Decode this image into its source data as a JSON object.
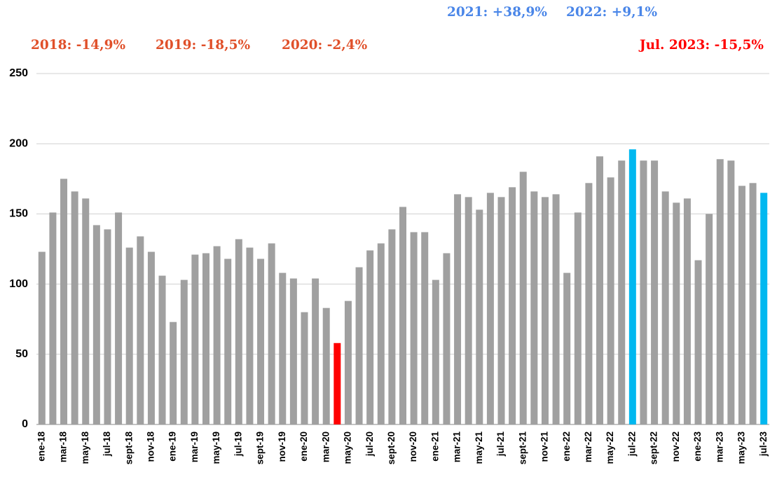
{
  "chart_data": {
    "type": "bar",
    "categories": [
      "ene-18",
      null,
      "mar-18",
      null,
      "may-18",
      null,
      "jul-18",
      null,
      "sept-18",
      null,
      "nov-18",
      null,
      "ene-19",
      null,
      "mar-19",
      null,
      "may-19",
      null,
      "jul-19",
      null,
      "sept-19",
      null,
      "nov-19",
      null,
      "ene-20",
      null,
      "mar-20",
      null,
      "may-20",
      null,
      "jul-20",
      null,
      "sept-20",
      null,
      "nov-20",
      null,
      "ene-21",
      null,
      "mar-21",
      null,
      "may-21",
      null,
      "jul-21",
      null,
      "sept-21",
      null,
      "nov-21",
      null,
      "ene-22",
      null,
      "mar-22",
      null,
      "may-22",
      null,
      "jul-22",
      null,
      "sept-22",
      null,
      "nov-22",
      null,
      "ene-23",
      null,
      "mar-23",
      null,
      "may-23",
      null,
      "jul-23"
    ],
    "values": [
      123,
      151,
      175,
      166,
      161,
      142,
      139,
      151,
      126,
      134,
      123,
      106,
      73,
      103,
      121,
      122,
      127,
      118,
      132,
      126,
      118,
      129,
      108,
      104,
      80,
      104,
      83,
      58,
      88,
      112,
      124,
      129,
      139,
      155,
      137,
      137,
      103,
      122,
      164,
      162,
      153,
      165,
      162,
      169,
      180,
      166,
      162,
      164,
      108,
      151,
      172,
      191,
      176,
      188,
      196,
      188,
      188,
      166,
      158,
      161,
      117,
      150,
      189,
      188,
      170,
      172,
      165
    ],
    "colors": [
      "#a0a0a0",
      "#a0a0a0",
      "#a0a0a0",
      "#a0a0a0",
      "#a0a0a0",
      "#a0a0a0",
      "#a0a0a0",
      "#a0a0a0",
      "#a0a0a0",
      "#a0a0a0",
      "#a0a0a0",
      "#a0a0a0",
      "#a0a0a0",
      "#a0a0a0",
      "#a0a0a0",
      "#a0a0a0",
      "#a0a0a0",
      "#a0a0a0",
      "#a0a0a0",
      "#a0a0a0",
      "#a0a0a0",
      "#a0a0a0",
      "#a0a0a0",
      "#a0a0a0",
      "#a0a0a0",
      "#a0a0a0",
      "#a0a0a0",
      "#ff0000",
      "#a0a0a0",
      "#a0a0a0",
      "#a0a0a0",
      "#a0a0a0",
      "#a0a0a0",
      "#a0a0a0",
      "#a0a0a0",
      "#a0a0a0",
      "#a0a0a0",
      "#a0a0a0",
      "#a0a0a0",
      "#a0a0a0",
      "#a0a0a0",
      "#a0a0a0",
      "#a0a0a0",
      "#a0a0a0",
      "#a0a0a0",
      "#a0a0a0",
      "#a0a0a0",
      "#a0a0a0",
      "#a0a0a0",
      "#a0a0a0",
      "#a0a0a0",
      "#a0a0a0",
      "#a0a0a0",
      "#a0a0a0",
      "#00b8f0",
      "#a0a0a0",
      "#a0a0a0",
      "#a0a0a0",
      "#a0a0a0",
      "#a0a0a0",
      "#a0a0a0",
      "#a0a0a0",
      "#a0a0a0",
      "#a0a0a0",
      "#a0a0a0",
      "#a0a0a0",
      "#00b8f0"
    ],
    "ylim": [
      0,
      250
    ],
    "yticks": [
      0,
      50,
      100,
      150,
      200,
      250
    ],
    "grid": true,
    "annotations": [
      {
        "text": "2021: +38,9%",
        "color": "#4a86e8"
      },
      {
        "text": "2022: +9,1%",
        "color": "#4a86e8"
      },
      {
        "text": "2018: -14,9%",
        "color": "#e0502a"
      },
      {
        "text": "2019: -18,5%",
        "color": "#e0502a"
      },
      {
        "text": "2020: -2,4%",
        "color": "#e0502a"
      },
      {
        "text": "Jul. 2023: -15,5%",
        "color": "#ff0000"
      }
    ]
  }
}
